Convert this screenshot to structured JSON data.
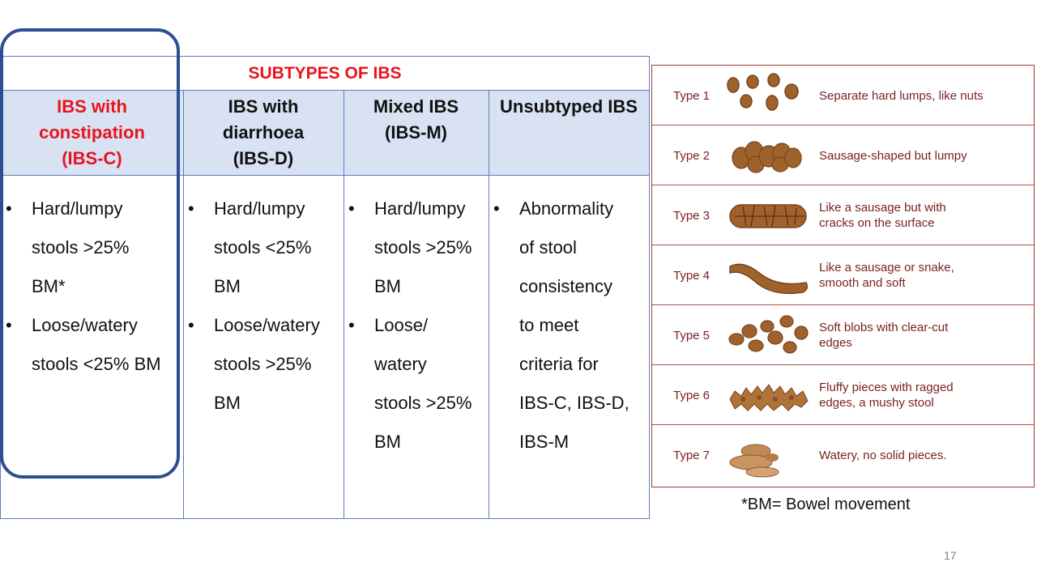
{
  "table": {
    "title": "SUBTYPES OF IBS",
    "columns": [
      {
        "header": "IBS with\nconstipation\n(IBS-C)",
        "bullets": [
          "Hard/lumpy\nstools >25%\nBM*",
          "Loose/watery\nstools <25% BM"
        ]
      },
      {
        "header": "IBS with\ndiarrhoea\n(IBS-D)",
        "bullets": [
          "Hard/lumpy\nstools <25%\nBM",
          "Loose/watery\nstools >25%\nBM"
        ]
      },
      {
        "header": "Mixed IBS\n(IBS-M)",
        "bullets": [
          "Hard/lumpy\nstools >25%\nBM",
          "Loose/\nwatery\nstools >25%\nBM"
        ]
      },
      {
        "header": "Unsubtyped IBS",
        "bullets": [
          "Abnormality\nof stool\nconsistency\nto meet\ncriteria for\nIBS-C, IBS-D,\nIBS-M"
        ]
      }
    ]
  },
  "bristol_chart": {
    "rows": [
      {
        "type": "Type 1",
        "description": "Separate hard lumps, like nuts"
      },
      {
        "type": "Type 2",
        "description": "Sausage-shaped but lumpy"
      },
      {
        "type": "Type 3",
        "description": "Like a sausage but with\ncracks on the surface"
      },
      {
        "type": "Type 4",
        "description": "Like a sausage or snake,\nsmooth and soft"
      },
      {
        "type": "Type 5",
        "description": "Soft blobs with clear-cut\nedges"
      },
      {
        "type": "Type 6",
        "description": "Fluffy pieces with ragged\nedges, a mushy stool"
      },
      {
        "type": "Type 7",
        "description": "Watery, no solid pieces."
      }
    ],
    "colors": {
      "stool": "#a0622d",
      "stool_dark": "#7a4219",
      "text": "#7a1f1f",
      "border": "#9a3a35"
    }
  },
  "footnote": "*BM= Bowel movement",
  "page_number": "17",
  "colors": {
    "accent_red": "#e8141c",
    "header_fill": "#d9e2f3",
    "table_border": "#5b7fbe",
    "highlight": "#2e4f8f"
  }
}
